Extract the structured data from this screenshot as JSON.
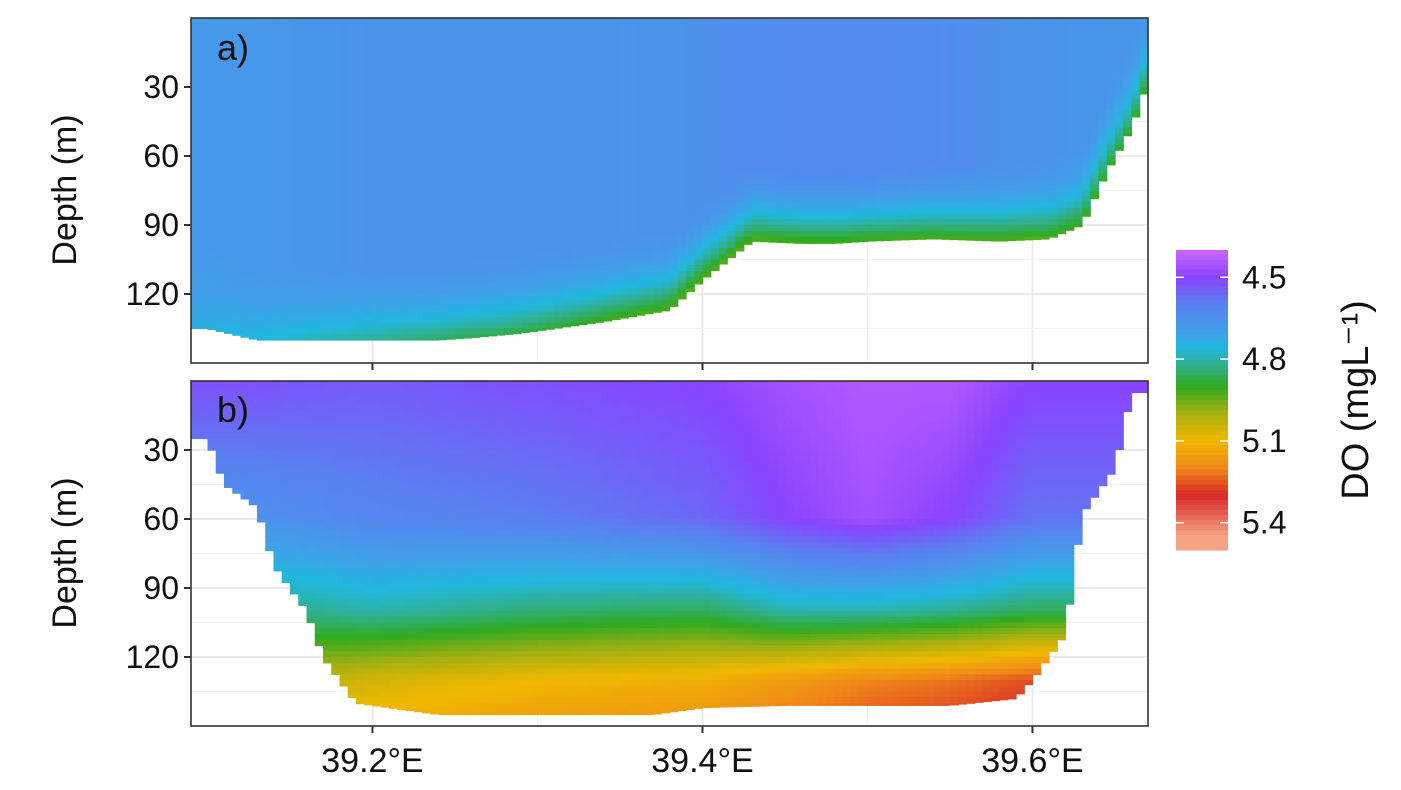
{
  "chart_data": [
    {
      "type": "heatmap",
      "panel_label": "a)",
      "ylabel": "Depth (m)",
      "ylim": [
        150,
        0
      ],
      "yticks": [
        30,
        60,
        90,
        120
      ],
      "xticks": [
        39.2,
        39.4,
        39.6
      ],
      "xtick_labels": [],
      "xlim": [
        39.09,
        39.67
      ],
      "bottom_profile": {
        "lon": [
          39.09,
          39.1,
          39.13,
          39.18,
          39.22,
          39.24,
          39.26,
          39.29,
          39.34,
          39.38,
          39.4,
          39.43,
          39.46,
          39.48,
          39.5,
          39.54,
          39.58,
          39.61,
          39.63,
          39.645,
          39.66,
          39.67
        ],
        "depth": [
          135,
          135,
          140,
          140,
          140,
          140,
          139,
          137,
          132,
          127,
          114,
          97,
          98,
          98,
          97,
          96,
          97,
          96,
          90,
          67,
          48,
          28
        ]
      },
      "approx_values_mgL": {
        "lon": [
          39.1,
          39.15,
          39.2,
          39.25,
          39.3,
          39.35,
          39.4,
          39.45,
          39.5,
          39.55,
          39.6,
          39.65
        ],
        "surface_to_mid": [
          4.68,
          4.67,
          4.66,
          4.66,
          4.66,
          4.66,
          4.65,
          4.63,
          4.63,
          4.64,
          4.66,
          4.67
        ],
        "near_bottom": [
          4.74,
          4.78,
          4.82,
          4.86,
          4.88,
          4.92,
          4.94,
          4.93,
          4.92,
          4.92,
          4.93,
          4.9
        ]
      }
    },
    {
      "type": "heatmap",
      "panel_label": "b)",
      "ylabel": "Depth (m)",
      "ylim": [
        150,
        0
      ],
      "yticks": [
        30,
        60,
        90,
        120
      ],
      "xticks": [
        39.2,
        39.4,
        39.6
      ],
      "xtick_labels": [
        "39.2°E",
        "39.4°E",
        "39.6°E"
      ],
      "xlim": [
        39.09,
        39.67
      ],
      "bottom_profile": {
        "lon": [
          39.09,
          39.1,
          39.11,
          39.13,
          39.14,
          39.16,
          39.17,
          39.19,
          39.24,
          39.3,
          39.37,
          39.4,
          39.45,
          39.5,
          39.55,
          39.59,
          39.6,
          39.62,
          39.63,
          39.65,
          39.66,
          39.67
        ],
        "depth": [
          25,
          25,
          45,
          55,
          80,
          100,
          120,
          140,
          145,
          145,
          145,
          142,
          141,
          141,
          141,
          138,
          130,
          110,
          58,
          38,
          5,
          5
        ]
      },
      "approx_values_mgL": {
        "lon": [
          39.12,
          39.2,
          39.3,
          39.4,
          39.45,
          39.5,
          39.55,
          39.6
        ],
        "surface": [
          4.52,
          4.54,
          4.52,
          4.5,
          4.46,
          4.44,
          4.44,
          4.5
        ],
        "depth_60m": [
          4.66,
          4.62,
          4.6,
          4.56,
          4.5,
          4.46,
          4.5,
          4.58
        ],
        "depth_100m": [
          4.84,
          4.8,
          4.84,
          4.86,
          4.8,
          4.8,
          4.82,
          4.86
        ],
        "depth_130m": [
          5.0,
          5.06,
          5.1,
          5.12,
          5.16,
          5.2,
          5.22,
          5.26
        ]
      }
    }
  ],
  "colorbar": {
    "title": "DO (mgL⁻¹)",
    "ticks": [
      4.5,
      4.8,
      5.1,
      5.4
    ],
    "range": [
      4.4,
      5.5
    ],
    "stops": [
      {
        "v": 4.4,
        "c": "#cc66ff"
      },
      {
        "v": 4.5,
        "c": "#8844ff"
      },
      {
        "v": 4.6,
        "c": "#5a80f0"
      },
      {
        "v": 4.7,
        "c": "#40a0e8"
      },
      {
        "v": 4.76,
        "c": "#20b8e0"
      },
      {
        "v": 4.82,
        "c": "#30b090"
      },
      {
        "v": 4.9,
        "c": "#30aa20"
      },
      {
        "v": 5.0,
        "c": "#a8b010"
      },
      {
        "v": 5.1,
        "c": "#f0b800"
      },
      {
        "v": 5.2,
        "c": "#f08818"
      },
      {
        "v": 5.3,
        "c": "#d82828"
      },
      {
        "v": 5.45,
        "c": "#f5a585"
      }
    ]
  }
}
